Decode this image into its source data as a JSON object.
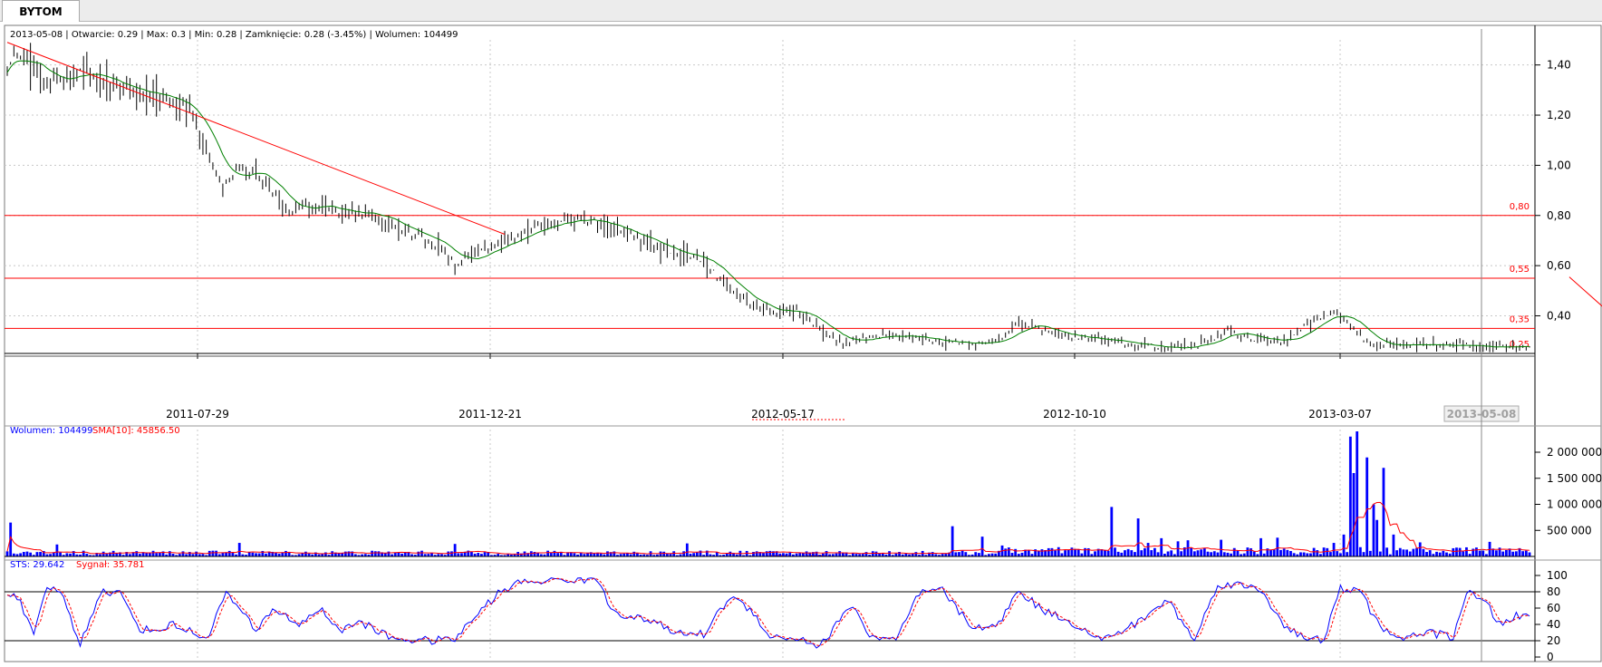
{
  "tab": {
    "label": "BYTOM"
  },
  "colors": {
    "price_bar": "#000000",
    "sma_line": "#008000",
    "level_line": "#ff0000",
    "trend_line": "#ff0000",
    "volume_bar": "#0000ff",
    "volume_sma": "#ff0000",
    "sts_line": "#0000ff",
    "signal_line": "#ff0000",
    "grid": "#c8c8c8",
    "axis": "#000000"
  },
  "chart_data": [
    {
      "type": "ohlc",
      "info_text": "2013-05-08 | Otwarcie: 0.29 | Max: 0.3 | Min: 0.28 | Zamknięcie: 0.28 (-3.45%)  | Wolumen: 104499",
      "y_ticks": [
        "1,40",
        "1,20",
        "1,00",
        "0,80",
        "0,60",
        "0,40"
      ],
      "y_tick_values": [
        1.4,
        1.2,
        1.0,
        0.8,
        0.6,
        0.4
      ],
      "ylim": [
        0.25,
        1.5
      ],
      "x_ticks": [
        "2011-07-29",
        "2011-12-21",
        "2012-05-17",
        "2012-10-10",
        "2013-03-07"
      ],
      "current_date_label": "2013-05-08",
      "levels": [
        {
          "label": "0,80",
          "value": 0.8
        },
        {
          "label": "0,55",
          "value": 0.55
        },
        {
          "label": "0,35",
          "value": 0.35
        },
        {
          "label": "0,25",
          "value": 0.25
        }
      ],
      "trendlines": [
        {
          "from": [
            0,
            1.49
          ],
          "to": [
            150,
            0.725
          ]
        },
        {
          "from": [
            471,
            0.555
          ],
          "to": [
            488,
            0.355
          ]
        }
      ],
      "close_anchors": [
        [
          0,
          1.38
        ],
        [
          3,
          1.45
        ],
        [
          12,
          1.33
        ],
        [
          20,
          1.37
        ],
        [
          25,
          1.36
        ],
        [
          35,
          1.3
        ],
        [
          45,
          1.28
        ],
        [
          55,
          1.22
        ],
        [
          60,
          1.05
        ],
        [
          65,
          0.92
        ],
        [
          70,
          1.0
        ],
        [
          78,
          0.93
        ],
        [
          85,
          0.8
        ],
        [
          90,
          0.85
        ],
        [
          100,
          0.82
        ],
        [
          110,
          0.8
        ],
        [
          120,
          0.74
        ],
        [
          130,
          0.68
        ],
        [
          135,
          0.6
        ],
        [
          140,
          0.64
        ],
        [
          145,
          0.66
        ],
        [
          150,
          0.7
        ],
        [
          160,
          0.76
        ],
        [
          170,
          0.79
        ],
        [
          178,
          0.77
        ],
        [
          188,
          0.72
        ],
        [
          200,
          0.65
        ],
        [
          210,
          0.62
        ],
        [
          218,
          0.5
        ],
        [
          228,
          0.42
        ],
        [
          238,
          0.42
        ],
        [
          245,
          0.35
        ],
        [
          252,
          0.29
        ],
        [
          265,
          0.33
        ],
        [
          280,
          0.3
        ],
        [
          295,
          0.29
        ],
        [
          300,
          0.32
        ],
        [
          305,
          0.37
        ],
        [
          315,
          0.33
        ],
        [
          330,
          0.3
        ],
        [
          350,
          0.27
        ],
        [
          360,
          0.29
        ],
        [
          368,
          0.34
        ],
        [
          375,
          0.31
        ],
        [
          385,
          0.3
        ],
        [
          392,
          0.37
        ],
        [
          400,
          0.42
        ],
        [
          411,
          0.29
        ],
        [
          416,
          0.28
        ]
      ],
      "bar_range": 0.055
    },
    {
      "type": "bar",
      "legend": [
        {
          "label": "Wolumen: 104499",
          "color": "#0000ff"
        },
        {
          "label": "SMA[10]: 45856.50",
          "color": "#ff0000"
        }
      ],
      "y_ticks": [
        "2 000 000",
        "1 500 000",
        "1 000 000",
        "500 000"
      ],
      "y_tick_values": [
        2000000,
        1500000,
        1000000,
        500000
      ],
      "ylim": [
        0,
        2400000
      ],
      "volume_base": 80000,
      "volume_spikes": [
        [
          1,
          650000
        ],
        [
          15,
          230000
        ],
        [
          70,
          260000
        ],
        [
          135,
          240000
        ],
        [
          205,
          250000
        ],
        [
          285,
          580000
        ],
        [
          294,
          380000
        ],
        [
          300,
          210000
        ],
        [
          333,
          950000
        ],
        [
          341,
          730000
        ],
        [
          344,
          260000
        ],
        [
          348,
          350000
        ],
        [
          353,
          290000
        ],
        [
          356,
          310000
        ],
        [
          366,
          320000
        ],
        [
          378,
          350000
        ],
        [
          383,
          360000
        ],
        [
          400,
          260000
        ],
        [
          403,
          420000
        ],
        [
          405,
          2300000
        ],
        [
          406,
          1600000
        ],
        [
          407,
          2400000
        ],
        [
          410,
          1900000
        ],
        [
          412,
          1000000
        ],
        [
          413,
          700000
        ],
        [
          415,
          1700000
        ],
        [
          418,
          420000
        ],
        [
          426,
          270000
        ],
        [
          447,
          280000
        ]
      ]
    },
    {
      "type": "line",
      "legend": [
        {
          "label": "STS: 29.642",
          "color": "#0000ff"
        },
        {
          "label": "Sygnał: 35.781",
          "color": "#ff0000"
        }
      ],
      "y_ticks": [
        "100",
        "80",
        "60",
        "40",
        "20",
        "0"
      ],
      "y_tick_values": [
        100,
        80,
        60,
        40,
        20,
        0
      ],
      "ylim": [
        0,
        100
      ],
      "hlines": [
        80,
        20
      ],
      "sts_anchors": [
        [
          0,
          80
        ],
        [
          3,
          75
        ],
        [
          8,
          25
        ],
        [
          12,
          85
        ],
        [
          16,
          82
        ],
        [
          22,
          15
        ],
        [
          28,
          80
        ],
        [
          34,
          78
        ],
        [
          40,
          35
        ],
        [
          44,
          32
        ],
        [
          50,
          40
        ],
        [
          56,
          30
        ],
        [
          60,
          22
        ],
        [
          66,
          78
        ],
        [
          70,
          60
        ],
        [
          75,
          30
        ],
        [
          80,
          60
        ],
        [
          88,
          40
        ],
        [
          95,
          60
        ],
        [
          100,
          30
        ],
        [
          106,
          45
        ],
        [
          112,
          30
        ],
        [
          118,
          22
        ],
        [
          128,
          20
        ],
        [
          135,
          22
        ],
        [
          140,
          45
        ],
        [
          148,
          78
        ],
        [
          155,
          92
        ],
        [
          168,
          95
        ],
        [
          178,
          95
        ],
        [
          182,
          60
        ],
        [
          188,
          48
        ],
        [
          195,
          45
        ],
        [
          200,
          30
        ],
        [
          210,
          28
        ],
        [
          218,
          75
        ],
        [
          225,
          55
        ],
        [
          230,
          25
        ],
        [
          240,
          22
        ],
        [
          245,
          12
        ],
        [
          250,
          40
        ],
        [
          255,
          65
        ],
        [
          260,
          25
        ],
        [
          268,
          20
        ],
        [
          275,
          78
        ],
        [
          282,
          82
        ],
        [
          290,
          40
        ],
        [
          298,
          35
        ],
        [
          305,
          82
        ],
        [
          312,
          58
        ],
        [
          320,
          45
        ],
        [
          330,
          20
        ],
        [
          340,
          40
        ],
        [
          350,
          70
        ],
        [
          358,
          20
        ],
        [
          365,
          90
        ],
        [
          372,
          88
        ],
        [
          378,
          82
        ],
        [
          385,
          40
        ],
        [
          392,
          20
        ],
        [
          397,
          22
        ],
        [
          402,
          84
        ],
        [
          408,
          80
        ],
        [
          412,
          50
        ],
        [
          418,
          22
        ],
        [
          428,
          30
        ],
        [
          436,
          25
        ],
        [
          440,
          80
        ],
        [
          446,
          65
        ],
        [
          450,
          40
        ],
        [
          455,
          50
        ]
      ],
      "signal_lag": 3
    }
  ]
}
